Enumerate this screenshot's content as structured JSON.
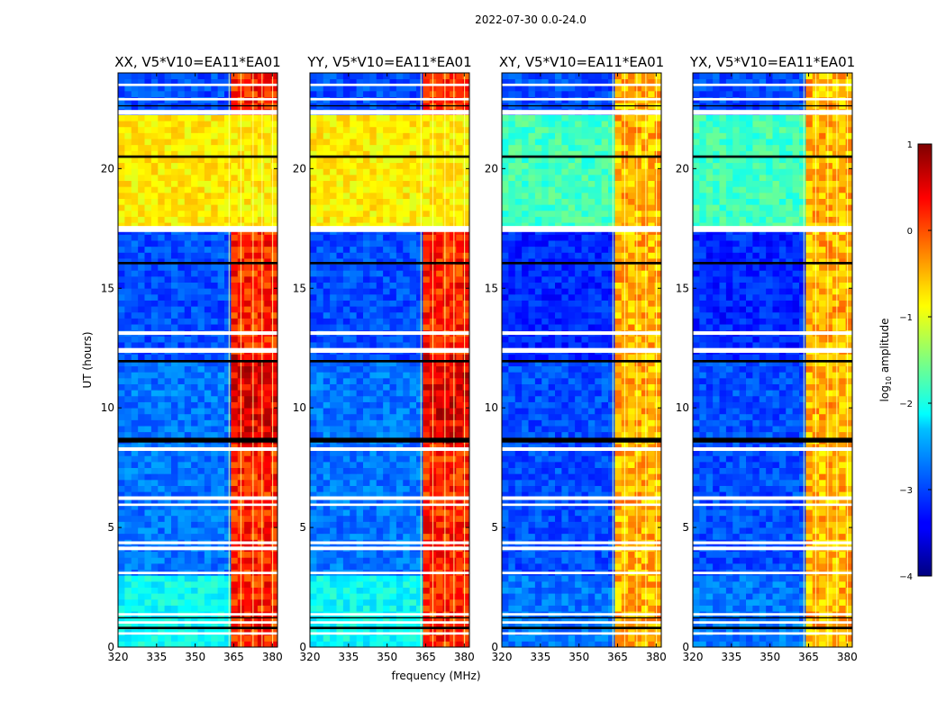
{
  "figure": {
    "suptitle": "2022-07-30 0.0-24.0",
    "xlabel": "frequency (MHz)",
    "ylabel": "UT (hours)",
    "colorbar_label_prefix": "log",
    "colorbar_label_sub": "10",
    "colorbar_label_suffix": " amplitude"
  },
  "colorbar": {
    "min": -4,
    "max": 1,
    "ticks": [
      "1",
      "0",
      "−1",
      "−2",
      "−3",
      "−4"
    ],
    "tick_values": [
      1,
      0,
      -1,
      -2,
      -3,
      -4
    ],
    "colormap": "jet"
  },
  "chart_data": [
    {
      "type": "heatmap",
      "title": "XX, V5*V10=EA11*EA01",
      "xlim": [
        320,
        382
      ],
      "ylim": [
        0,
        24
      ],
      "x_ticks": [
        320,
        335,
        350,
        365,
        380
      ],
      "y_ticks": [
        0,
        5,
        10,
        15,
        20
      ],
      "cross_hand": false,
      "background_log_amp": {
        "0-3h": -2.1,
        "3-12h": -2.8,
        "12-17.5h": -3.0,
        "17.5-22.3h": -0.8,
        "22.3-24h": -3.0
      },
      "rfi_band_mhz": [
        363,
        381
      ],
      "rfi_log_amp": 0.2
    },
    {
      "type": "heatmap",
      "title": "YY, V5*V10=EA11*EA01",
      "xlim": [
        320,
        382
      ],
      "ylim": [
        0,
        24
      ],
      "x_ticks": [
        320,
        335,
        350,
        365,
        380
      ],
      "y_ticks": [
        0,
        5,
        10,
        15,
        20
      ],
      "cross_hand": false,
      "background_log_amp": {
        "0-3h": -2.1,
        "3-12h": -2.8,
        "12-17.5h": -3.0,
        "17.5-22.3h": -0.8,
        "22.3-24h": -3.0
      },
      "rfi_band_mhz": [
        363,
        381
      ],
      "rfi_log_amp": 0.2
    },
    {
      "type": "heatmap",
      "title": "XY, V5*V10=EA11*EA01",
      "xlim": [
        320,
        382
      ],
      "ylim": [
        0,
        24
      ],
      "x_ticks": [
        320,
        335,
        350,
        365,
        380
      ],
      "y_ticks": [
        0,
        5,
        10,
        15,
        20
      ],
      "cross_hand": true,
      "background_log_amp": {
        "0-3h": -2.8,
        "3-12h": -3.0,
        "12-17.5h": -3.2,
        "17.5-22.3h": -1.8,
        "22.3-24h": -3.0
      },
      "rfi_band_mhz": [
        363,
        381
      ],
      "rfi_log_amp": -0.5
    },
    {
      "type": "heatmap",
      "title": "YX, V5*V10=EA11*EA01",
      "xlim": [
        320,
        382
      ],
      "ylim": [
        0,
        24
      ],
      "x_ticks": [
        320,
        335,
        350,
        365,
        380
      ],
      "y_ticks": [
        0,
        5,
        10,
        15,
        20
      ],
      "cross_hand": true,
      "background_log_amp": {
        "0-3h": -2.8,
        "3-12h": -3.0,
        "12-17.5h": -3.2,
        "17.5-22.3h": -1.8,
        "22.3-24h": -3.0
      },
      "rfi_band_mhz": [
        363,
        381
      ],
      "rfi_log_amp": -0.5
    }
  ]
}
